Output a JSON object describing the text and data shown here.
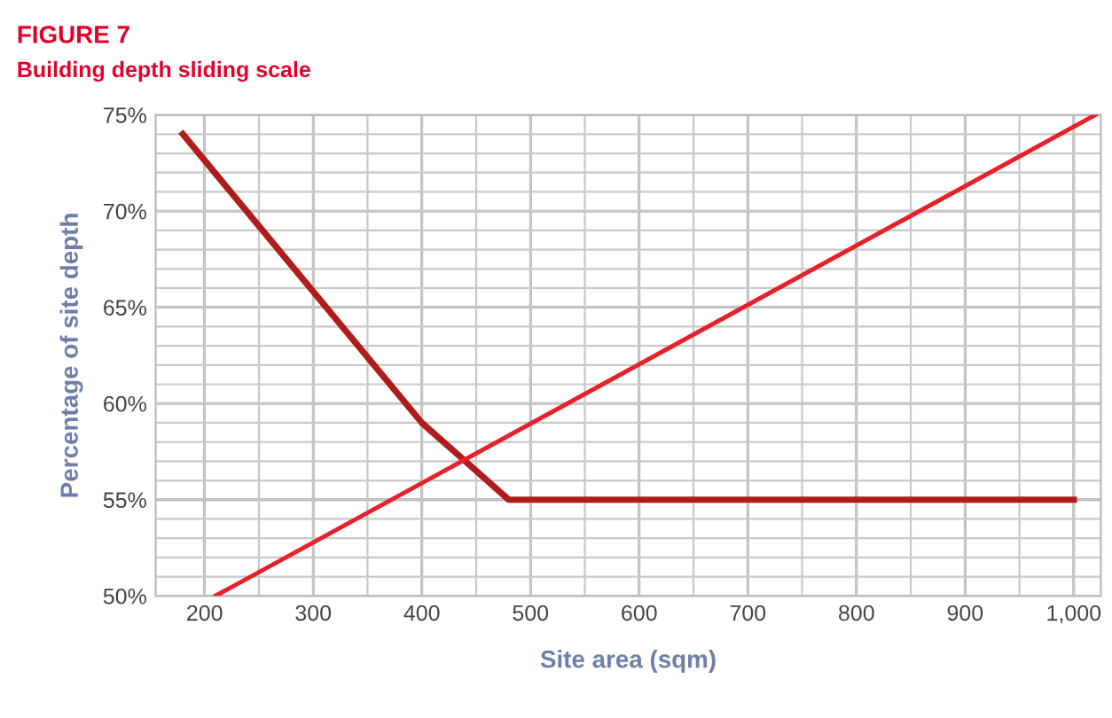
{
  "chart_data": {
    "type": "line",
    "title": "FIGURE 7",
    "subtitle": "Building depth sliding scale",
    "xlabel": "Site area (sqm)",
    "ylabel": "Percentage of site depth",
    "series": [
      {
        "color": "#b01c1c",
        "x": [
          180,
          400,
          480,
          1000
        ],
        "values": [
          74,
          59,
          55,
          55
        ]
      },
      {
        "color": "#e8202a",
        "x": [
          210,
          1020
        ],
        "values": [
          50,
          75
        ]
      }
    ],
    "xlim": [
      155,
      1025
    ],
    "ylim": [
      50,
      75
    ],
    "xticks": [
      200,
      {
        "value": 250,
        "label": null
      },
      300,
      {
        "value": 350,
        "label": null
      },
      400,
      {
        "value": 450,
        "label": null
      },
      500,
      {
        "value": 550,
        "label": null
      },
      600,
      {
        "value": 650,
        "label": null
      },
      700,
      {
        "value": 750,
        "label": null
      },
      800,
      {
        "value": 850,
        "label": null
      },
      900,
      {
        "value": 950,
        "label": null
      },
      {
        "value": 1000,
        "label": "1,000"
      }
    ],
    "yticks": [
      {
        "value": 50,
        "label": "50%"
      },
      {
        "value": 51,
        "label": null
      },
      {
        "value": 52,
        "label": null
      },
      {
        "value": 53,
        "label": null
      },
      {
        "value": 54,
        "label": null
      },
      {
        "value": 55,
        "label": "55%"
      },
      {
        "value": 56,
        "label": null
      },
      {
        "value": 57,
        "label": null
      },
      {
        "value": 58,
        "label": null
      },
      {
        "value": 59,
        "label": null
      },
      {
        "value": 60,
        "label": "60%"
      },
      {
        "value": 61,
        "label": null
      },
      {
        "value": 62,
        "label": null
      },
      {
        "value": 63,
        "label": null
      },
      {
        "value": 64,
        "label": null
      },
      {
        "value": 65,
        "label": "65%"
      },
      {
        "value": 66,
        "label": null
      },
      {
        "value": 67,
        "label": null
      },
      {
        "value": 68,
        "label": null
      },
      {
        "value": 69,
        "label": null
      },
      {
        "value": 70,
        "label": "70%"
      },
      {
        "value": 71,
        "label": null
      },
      {
        "value": 72,
        "label": null
      },
      {
        "value": 73,
        "label": null
      },
      {
        "value": 74,
        "label": null
      },
      {
        "value": 75,
        "label": "75%"
      }
    ],
    "grid": true,
    "marker": "none",
    "line_style": "solid"
  }
}
